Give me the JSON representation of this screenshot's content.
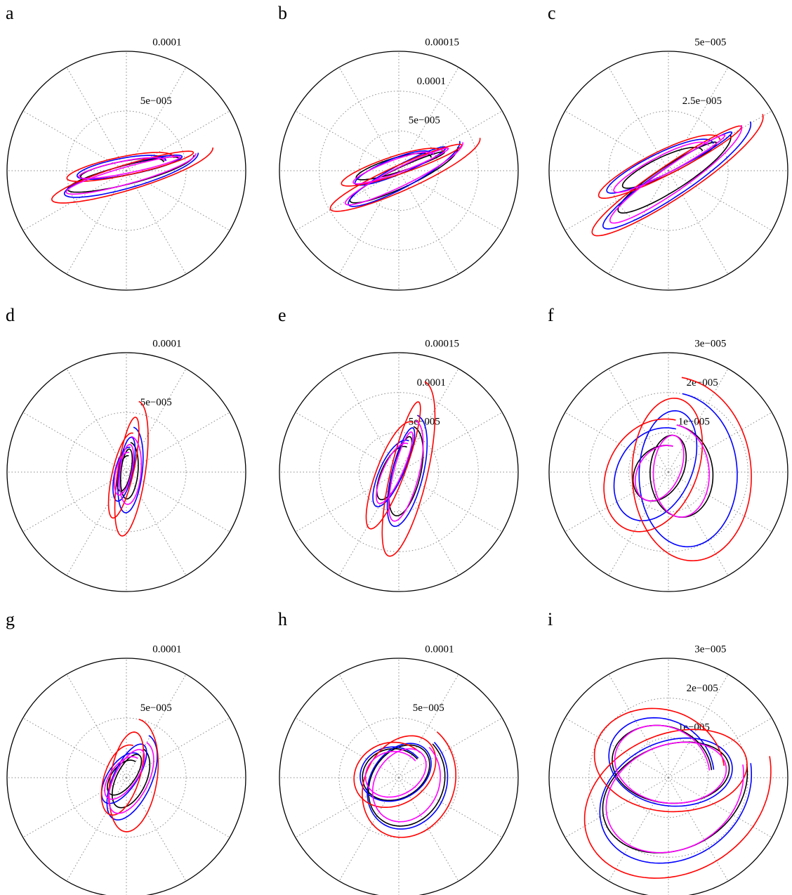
{
  "colors": {
    "c1": "#000000",
    "c2": "#0000ff",
    "c3": "#ff0000",
    "c4": "#ff00ff"
  },
  "chart_data": [
    {
      "type": "polar",
      "panel": "a",
      "rmax": 0.0001,
      "tick_labels": [
        {
          "r": 0.0001,
          "text": "0.0001"
        },
        {
          "r": 5e-05,
          "text": "5e−005"
        }
      ],
      "grid_rings": [
        5e-05
      ],
      "series": [
        {
          "color": "c1",
          "angle_deg": 13,
          "along": 5.8e-05,
          "across": 9e-06,
          "shift": 4e-06
        },
        {
          "color": "c2",
          "angle_deg": 14,
          "along": 6.2e-05,
          "across": 1.1e-05,
          "shift": 6e-06
        },
        {
          "color": "c3",
          "angle_deg": 15,
          "along": 7.5e-05,
          "across": 1.2e-05,
          "shift": 7e-06
        },
        {
          "color": "c4",
          "angle_deg": 14,
          "along": 6e-05,
          "across": 8e-06,
          "shift": 5e-06
        }
      ]
    },
    {
      "type": "polar",
      "panel": "b",
      "rmax": 0.00015,
      "tick_labels": [
        {
          "r": 0.00015,
          "text": "0.00015"
        },
        {
          "r": 0.0001,
          "text": "0.0001"
        },
        {
          "r": 5e-05,
          "text": "5e−005"
        }
      ],
      "grid_rings": [
        5e-05,
        0.0001
      ],
      "series": [
        {
          "color": "c1",
          "angle_deg": 22,
          "along": 8e-05,
          "across": 1.4e-05,
          "shift": 1.2e-05
        },
        {
          "color": "c2",
          "angle_deg": 26,
          "along": 8.5e-05,
          "across": 1.6e-05,
          "shift": 1e-05
        },
        {
          "color": "c3",
          "angle_deg": 22,
          "along": 0.00011,
          "across": 1.8e-05,
          "shift": 1.2e-05
        },
        {
          "color": "c4",
          "angle_deg": 24,
          "along": 8.8e-05,
          "across": 1.3e-05,
          "shift": 1e-05
        }
      ]
    },
    {
      "type": "polar",
      "panel": "c",
      "rmax": 5e-05,
      "tick_labels": [
        {
          "r": 5e-05,
          "text": "5e−005"
        },
        {
          "r": 2.5e-05,
          "text": "2.5e−005"
        }
      ],
      "grid_rings": [
        2.5e-05
      ],
      "series": [
        {
          "color": "c1",
          "angle_deg": 30,
          "along": 3e-05,
          "across": 6e-06,
          "shift": 4e-06
        },
        {
          "color": "c2",
          "angle_deg": 31,
          "along": 4e-05,
          "across": 7e-06,
          "shift": 6e-06
        },
        {
          "color": "c3",
          "angle_deg": 31,
          "along": 4.6e-05,
          "across": 8e-06,
          "shift": 6e-06
        },
        {
          "color": "c4",
          "angle_deg": 32,
          "along": 3.6e-05,
          "across": 6e-06,
          "shift": 5e-06
        }
      ]
    },
    {
      "type": "polar",
      "panel": "d",
      "rmax": 0.0001,
      "tick_labels": [
        {
          "r": 0.0001,
          "text": "0.0001"
        },
        {
          "r": 5e-05,
          "text": "5e−005"
        }
      ],
      "grid_rings": [
        5e-05
      ],
      "series": [
        {
          "color": "c1",
          "angle_deg": 82,
          "along": 2.5e-05,
          "across": 8e-06,
          "shift": 3e-06
        },
        {
          "color": "c2",
          "angle_deg": 81,
          "along": 3.8e-05,
          "across": 1.1e-05,
          "shift": 4e-06
        },
        {
          "color": "c3",
          "angle_deg": 80,
          "along": 6e-05,
          "across": 1.3e-05,
          "shift": 5e-06
        },
        {
          "color": "c4",
          "angle_deg": 82,
          "along": 3e-05,
          "across": 1e-05,
          "shift": 4e-06
        }
      ]
    },
    {
      "type": "polar",
      "panel": "e",
      "rmax": 0.00015,
      "tick_labels": [
        {
          "r": 0.00015,
          "text": "0.00015"
        },
        {
          "r": 0.0001,
          "text": "0.0001"
        },
        {
          "r": 5e-05,
          "text": "5e−005"
        }
      ],
      "grid_rings": [
        5e-05,
        0.0001
      ],
      "series": [
        {
          "color": "c1",
          "angle_deg": 72,
          "along": 6e-05,
          "across": 2e-05,
          "shift": 1.2e-05
        },
        {
          "color": "c2",
          "angle_deg": 72,
          "along": 7.5e-05,
          "across": 2.2e-05,
          "shift": 1.4e-05
        },
        {
          "color": "c3",
          "angle_deg": 74,
          "along": 0.000118,
          "across": 2.6e-05,
          "shift": 1.6e-05
        },
        {
          "color": "c4",
          "angle_deg": 72,
          "along": 6.8e-05,
          "across": 1.8e-05,
          "shift": 1.2e-05
        }
      ]
    },
    {
      "type": "polar",
      "panel": "f",
      "rmax": 3e-05,
      "tick_labels": [
        {
          "r": 3e-05,
          "text": "3e−005"
        },
        {
          "r": 2e-05,
          "text": "2e−005"
        },
        {
          "r": 1e-05,
          "text": "1e−005"
        }
      ],
      "grid_rings": [
        1e-05,
        2e-05
      ],
      "series": [
        {
          "color": "c1",
          "angle_deg": 80,
          "along": 1.2e-05,
          "across": 9e-06,
          "shift": 4e-06
        },
        {
          "color": "c2",
          "angle_deg": 80,
          "along": 2e-05,
          "across": 1.4e-05,
          "shift": 6e-06
        },
        {
          "color": "c3",
          "angle_deg": 82,
          "along": 2.4e-05,
          "across": 1.7e-05,
          "shift": 7e-06
        },
        {
          "color": "c4",
          "angle_deg": 80,
          "along": 1.2e-05,
          "across": 8e-06,
          "shift": 4e-06
        }
      ]
    },
    {
      "type": "polar",
      "panel": "g",
      "rmax": 0.0001,
      "tick_labels": [
        {
          "r": 0.0001,
          "text": "0.0001"
        },
        {
          "r": 5e-05,
          "text": "5e−005"
        }
      ],
      "grid_rings": [
        5e-05
      ],
      "series": [
        {
          "color": "c1",
          "angle_deg": 60,
          "along": 2.8e-05,
          "across": 1.4e-05,
          "shift": 5e-06
        },
        {
          "color": "c2",
          "angle_deg": 62,
          "along": 4e-05,
          "across": 1.8e-05,
          "shift": 6e-06
        },
        {
          "color": "c3",
          "angle_deg": 78,
          "along": 5e-05,
          "across": 2.2e-05,
          "shift": 7e-06
        },
        {
          "color": "c4",
          "angle_deg": 60,
          "along": 3.4e-05,
          "across": 1.6e-05,
          "shift": 5e-06
        }
      ]
    },
    {
      "type": "polar",
      "panel": "h",
      "rmax": 0.0001,
      "tick_labels": [
        {
          "r": 0.0001,
          "text": "0.0001"
        },
        {
          "r": 5e-05,
          "text": "5e−005"
        }
      ],
      "grid_rings": [
        5e-05
      ],
      "series": [
        {
          "color": "c1",
          "angle_deg": 45,
          "along": 4e-05,
          "across": 3.4e-05,
          "shift": 1e-05
        },
        {
          "color": "c2",
          "angle_deg": 45,
          "along": 4.2e-05,
          "across": 3.6e-05,
          "shift": 1.1e-05
        },
        {
          "color": "c3",
          "angle_deg": 50,
          "along": 5e-05,
          "across": 4.2e-05,
          "shift": 1.2e-05
        },
        {
          "color": "c4",
          "angle_deg": 45,
          "along": 3.6e-05,
          "across": 3e-05,
          "shift": 1e-05
        }
      ]
    },
    {
      "type": "polar",
      "panel": "i",
      "rmax": 3e-05,
      "tick_labels": [
        {
          "r": 3e-05,
          "text": "3e−005"
        },
        {
          "r": 2e-05,
          "text": "2e−005"
        },
        {
          "r": 1e-05,
          "text": "1e−005"
        }
      ],
      "grid_rings": [
        1e-05,
        2e-05
      ],
      "series": [
        {
          "color": "c1",
          "angle_deg": 10,
          "along": 2e-05,
          "across": 1.5e-05,
          "shift": 6e-06
        },
        {
          "color": "c2",
          "angle_deg": 10,
          "along": 2.1e-05,
          "across": 1.7e-05,
          "shift": 7e-06
        },
        {
          "color": "c3",
          "angle_deg": 12,
          "along": 2.6e-05,
          "across": 2e-05,
          "shift": 8e-06
        },
        {
          "color": "c4",
          "angle_deg": 10,
          "along": 1.9e-05,
          "across": 1.5e-05,
          "shift": 6e-06
        }
      ]
    }
  ]
}
